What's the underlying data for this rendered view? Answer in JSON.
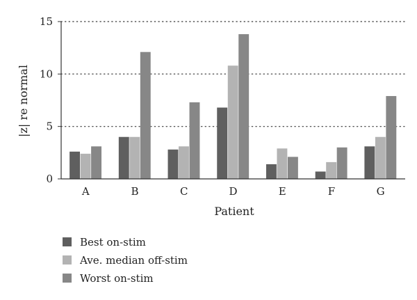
{
  "chart_data": {
    "type": "bar",
    "title": "",
    "xlabel": "Patient",
    "ylabel": "|z| re normal",
    "ylim": [
      0,
      15
    ],
    "yticks": [
      0,
      5,
      10,
      15
    ],
    "grid": "horizontal dotted",
    "legend_position": "bottom-left",
    "categories": [
      "A",
      "B",
      "C",
      "D",
      "E",
      "F",
      "G"
    ],
    "series": [
      {
        "name": "Best on-stim",
        "color": "#5f5f5f",
        "values": [
          2.6,
          4.0,
          2.8,
          6.8,
          1.4,
          0.7,
          3.1
        ]
      },
      {
        "name": "Ave. median off-stim",
        "color": "#b3b3b3",
        "values": [
          2.4,
          4.0,
          3.1,
          10.8,
          2.9,
          1.6,
          4.0
        ]
      },
      {
        "name": "Worst on-stim",
        "color": "#878787",
        "values": [
          3.1,
          12.1,
          7.3,
          13.8,
          2.1,
          3.0,
          7.9
        ]
      }
    ]
  }
}
